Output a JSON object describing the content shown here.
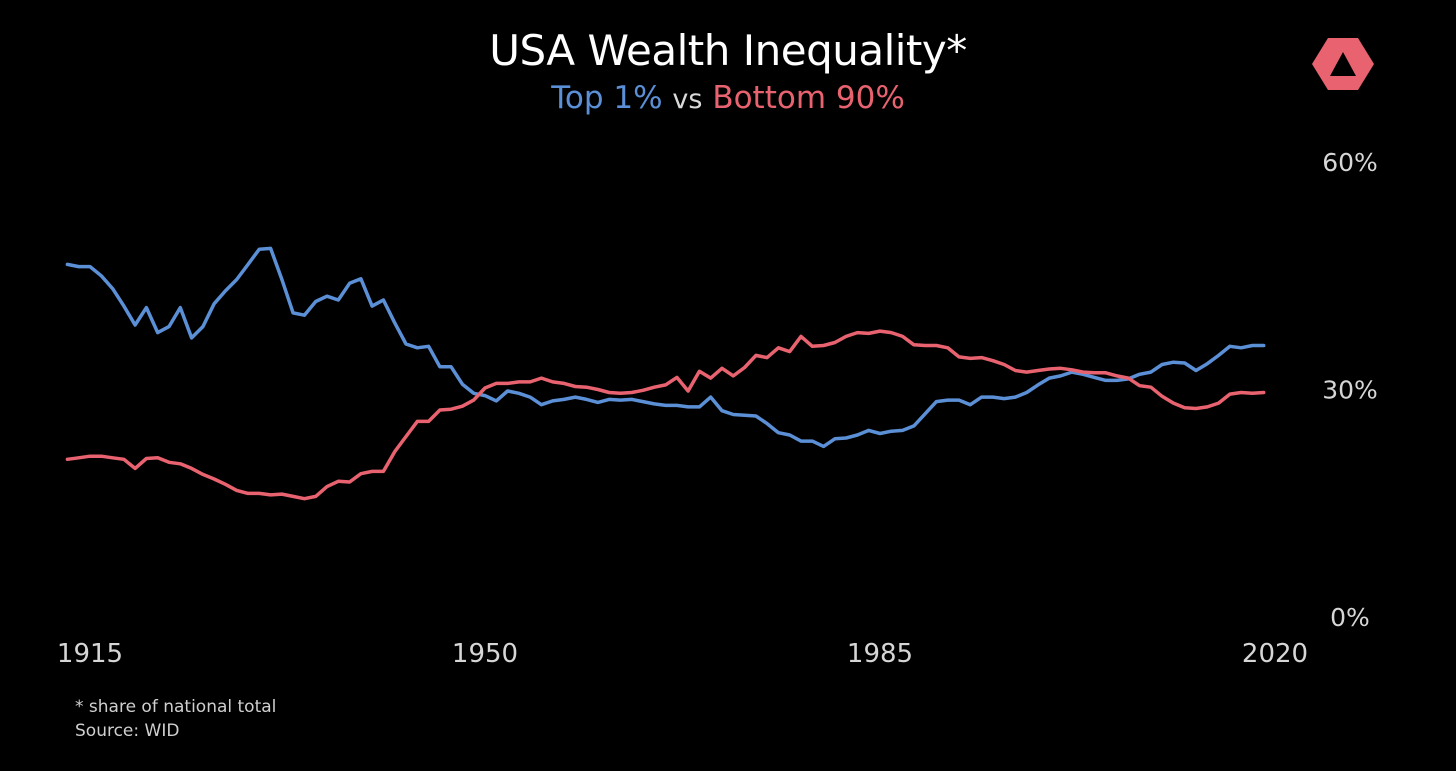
{
  "title": "USA Wealth Inequality*",
  "subtitle": {
    "series1": "Top 1%",
    "connector": "vs",
    "series2": "Bottom 90%"
  },
  "footnote": {
    "line1": "* share of national total",
    "line2": "Source: WID"
  },
  "colors": {
    "background": "#000000",
    "top1": "#5b8fd6",
    "bottom90": "#e8636f",
    "text": "#ffffff"
  },
  "logo_icon": "triangle-logo-icon",
  "chart_data": {
    "type": "line",
    "title": "USA Wealth Inequality*",
    "xlabel": "",
    "ylabel": "",
    "xlim": [
      1915,
      2020
    ],
    "ylim": [
      0,
      60
    ],
    "x_ticks": [
      1915,
      1950,
      1985,
      2020
    ],
    "x_tick_labels": [
      "1915",
      "1950",
      "1985",
      "2020"
    ],
    "y_ticks": [
      0,
      30,
      60
    ],
    "y_tick_labels": [
      "0%",
      "30%",
      "60%"
    ],
    "y_axis_side": "right",
    "grid": false,
    "legend": "subtitle",
    "x": [
      1913,
      1914,
      1915,
      1916,
      1917,
      1918,
      1919,
      1920,
      1921,
      1922,
      1923,
      1924,
      1925,
      1926,
      1927,
      1928,
      1929,
      1930,
      1931,
      1932,
      1933,
      1934,
      1935,
      1936,
      1937,
      1938,
      1939,
      1940,
      1941,
      1942,
      1943,
      1944,
      1945,
      1946,
      1947,
      1948,
      1949,
      1950,
      1951,
      1952,
      1953,
      1954,
      1955,
      1956,
      1957,
      1958,
      1959,
      1960,
      1961,
      1962,
      1963,
      1964,
      1965,
      1966,
      1967,
      1968,
      1969,
      1970,
      1971,
      1972,
      1973,
      1974,
      1975,
      1976,
      1977,
      1978,
      1979,
      1980,
      1981,
      1982,
      1983,
      1984,
      1985,
      1986,
      1987,
      1988,
      1989,
      1990,
      1991,
      1992,
      1993,
      1994,
      1995,
      1996,
      1997,
      1998,
      1999,
      2000,
      2001,
      2002,
      2003,
      2004,
      2005,
      2006,
      2007,
      2008,
      2009,
      2010,
      2011,
      2012,
      2013,
      2014,
      2015,
      2016,
      2017,
      2018,
      2019
    ],
    "series": [
      {
        "name": "Top 1%",
        "color": "#5b8fd6",
        "values": [
          46.5,
          46.2,
          46.2,
          45.0,
          43.3,
          41.0,
          38.5,
          40.8,
          37.5,
          38.3,
          40.8,
          36.8,
          38.3,
          41.3,
          43.0,
          44.5,
          46.5,
          48.5,
          48.6,
          44.5,
          40.1,
          39.8,
          41.6,
          42.3,
          41.8,
          44.0,
          44.6,
          41.0,
          41.8,
          38.8,
          36.0,
          35.5,
          35.7,
          33.0,
          33.0,
          30.7,
          29.5,
          29.2,
          28.5,
          29.8,
          29.5,
          29.0,
          28.0,
          28.5,
          28.7,
          29.0,
          28.7,
          28.3,
          28.7,
          28.6,
          28.7,
          28.4,
          28.1,
          27.9,
          27.9,
          27.7,
          27.7,
          29.0,
          27.2,
          26.7,
          26.6,
          26.5,
          25.5,
          24.3,
          24.0,
          23.2,
          23.2,
          22.5,
          23.5,
          23.6,
          24.0,
          24.6,
          24.2,
          24.5,
          24.6,
          25.2,
          26.8,
          28.4,
          28.6,
          28.6,
          28.0,
          29.0,
          29.0,
          28.8,
          29.0,
          29.6,
          30.6,
          31.5,
          31.8,
          32.3,
          32.0,
          31.6,
          31.2,
          31.2,
          31.4,
          32.0,
          32.3,
          33.3,
          33.6,
          33.5,
          32.5,
          33.4,
          34.5,
          35.7,
          35.5,
          35.8,
          35.8
        ]
      },
      {
        "name": "Bottom 90%",
        "color": "#e8636f",
        "values": [
          20.8,
          21.0,
          21.2,
          21.2,
          21.0,
          20.8,
          19.6,
          20.9,
          21.0,
          20.4,
          20.2,
          19.6,
          18.8,
          18.2,
          17.5,
          16.7,
          16.3,
          16.3,
          16.1,
          16.2,
          15.9,
          15.6,
          15.9,
          17.2,
          17.9,
          17.8,
          18.9,
          19.2,
          19.2,
          21.8,
          23.8,
          25.8,
          25.8,
          27.3,
          27.4,
          27.8,
          28.6,
          30.2,
          30.8,
          30.8,
          31.0,
          31.0,
          31.5,
          31.0,
          30.8,
          30.4,
          30.3,
          30.0,
          29.6,
          29.5,
          29.6,
          29.9,
          30.3,
          30.6,
          31.6,
          29.8,
          32.4,
          31.5,
          32.8,
          31.8,
          32.9,
          34.5,
          34.2,
          35.5,
          35.0,
          37.0,
          35.7,
          35.8,
          36.2,
          37.0,
          37.5,
          37.4,
          37.7,
          37.5,
          37.0,
          35.9,
          35.8,
          35.8,
          35.5,
          34.3,
          34.1,
          34.2,
          33.8,
          33.3,
          32.5,
          32.3,
          32.5,
          32.7,
          32.8,
          32.6,
          32.3,
          32.2,
          32.2,
          31.8,
          31.5,
          30.5,
          30.3,
          29.1,
          28.2,
          27.6,
          27.5,
          27.7,
          28.2,
          29.4,
          29.6,
          29.5,
          29.6
        ]
      }
    ]
  }
}
